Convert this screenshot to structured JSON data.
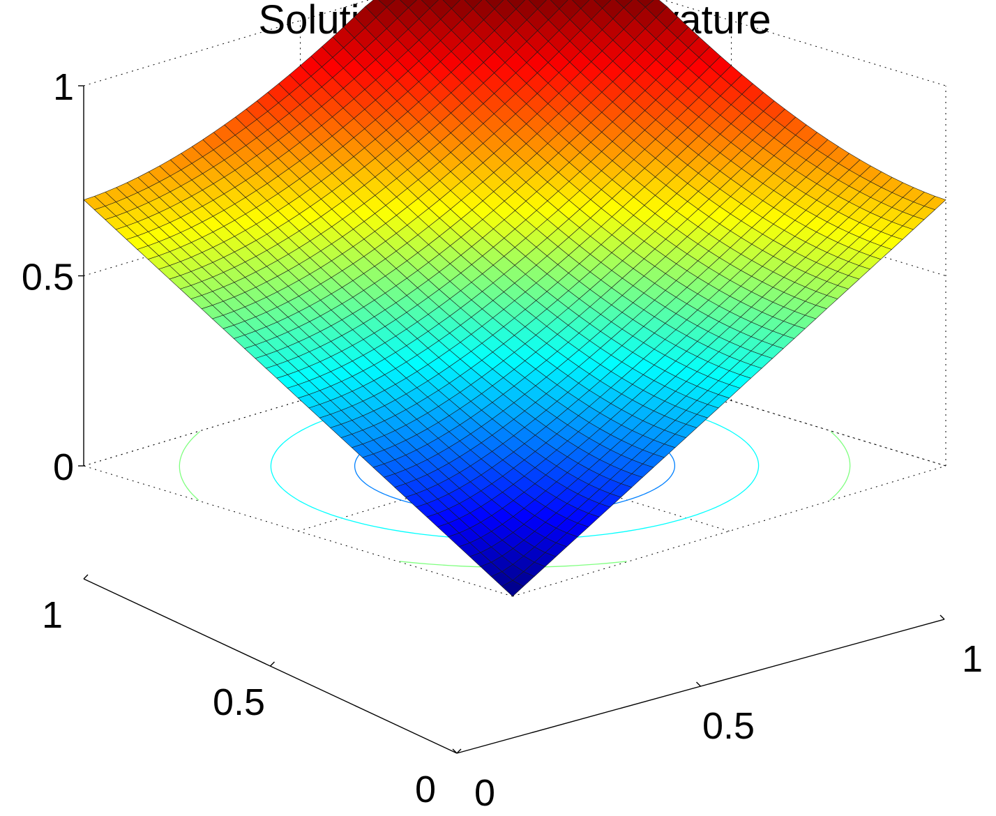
{
  "chart_data": {
    "type": "surface",
    "title": "Solution with High Curvature",
    "xlabel": "",
    "ylabel": "",
    "zlabel": "",
    "xlim": [
      0,
      1
    ],
    "ylim": [
      0,
      1
    ],
    "zlim": [
      0,
      1
    ],
    "x_ticks": [
      "0",
      "0.5",
      "1"
    ],
    "y_ticks": [
      "0",
      "0.5",
      "1"
    ],
    "z_ticks": [
      "0",
      "0.5",
      "1"
    ],
    "grid": true,
    "colormap": "jet",
    "surface_function": "z = sqrt(x^2 + y^2) / sqrt(2) * 0.7 + extra curvature; minimum 0 at corner (0,0), maximum 1 at corner (1,1), about 0.7 at (1,0) and (0,1)",
    "surface_samples": {
      "x": [
        0,
        0.25,
        0.5,
        0.75,
        1
      ],
      "y": [
        0,
        0.25,
        0.5,
        0.75,
        1
      ],
      "z": [
        [
          0.0,
          0.18,
          0.35,
          0.52,
          0.7
        ],
        [
          0.18,
          0.25,
          0.4,
          0.56,
          0.73
        ],
        [
          0.35,
          0.4,
          0.5,
          0.62,
          0.78
        ],
        [
          0.52,
          0.56,
          0.62,
          0.72,
          0.87
        ],
        [
          0.7,
          0.73,
          0.78,
          0.87,
          1.0
        ]
      ]
    },
    "contour_levels": [
      0.05,
      0.15,
      0.25,
      0.35,
      0.5,
      0.7
    ],
    "contour_colors": [
      "#0000ff",
      "#0080ff",
      "#00ffff",
      "#80ff80",
      "#ffbf00",
      "#ff0000"
    ]
  }
}
